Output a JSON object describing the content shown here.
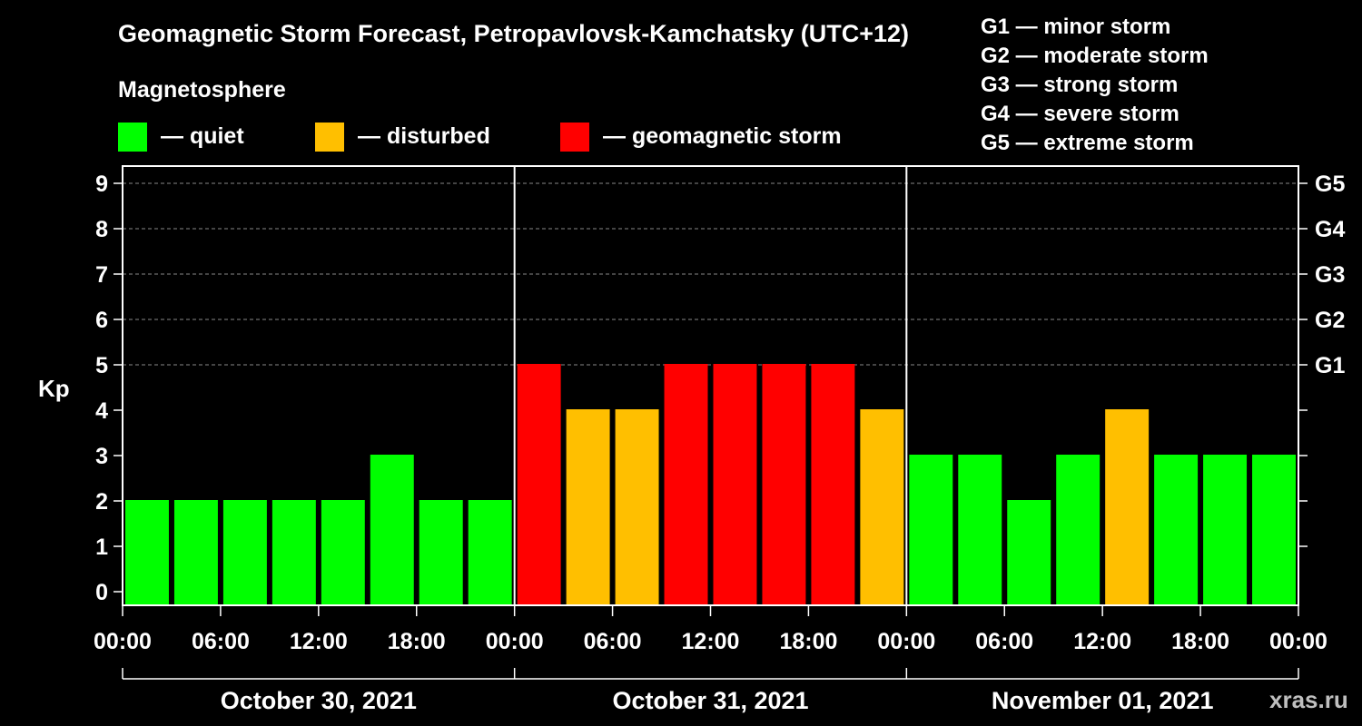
{
  "title": "Geomagnetic Storm Forecast, Petropavlovsk-Kamchatsky (UTC+12)",
  "legend": {
    "title": "Magnetosphere",
    "items": [
      {
        "label": "— quiet",
        "color": "#00ff00"
      },
      {
        "label": "— disturbed",
        "color": "#ffbf00"
      },
      {
        "label": "— geomagnetic storm",
        "color": "#ff0000"
      }
    ]
  },
  "storm_levels": [
    "G1 — minor storm",
    "G2 — moderate storm",
    "G3 — strong storm",
    "G4 — severe storm",
    "G5 — extreme storm"
  ],
  "watermark": "xras.ru",
  "chart_data": {
    "type": "bar",
    "ylabel": "Kp",
    "ylim": [
      0,
      9
    ],
    "yticks": [
      "0",
      "1",
      "2",
      "3",
      "4",
      "5",
      "6",
      "7",
      "8",
      "9"
    ],
    "right_axis_labels": [
      {
        "kp": 5,
        "label": "G1"
      },
      {
        "kp": 6,
        "label": "G2"
      },
      {
        "kp": 7,
        "label": "G3"
      },
      {
        "kp": 8,
        "label": "G4"
      },
      {
        "kp": 9,
        "label": "G5"
      }
    ],
    "xtick_labels": [
      "00:00",
      "06:00",
      "12:00",
      "18:00",
      "00:00",
      "06:00",
      "12:00",
      "18:00",
      "00:00",
      "06:00",
      "12:00",
      "18:00",
      "00:00"
    ],
    "days": [
      "October 30, 2021",
      "October 31, 2021",
      "November 01, 2021"
    ],
    "grid": true,
    "values": [
      2,
      2,
      2,
      2,
      2,
      3,
      2,
      2,
      5,
      4,
      4,
      5,
      5,
      5,
      5,
      4,
      3,
      3,
      2,
      3,
      4,
      3,
      3,
      3
    ],
    "colors": {
      "quiet": "#00ff00",
      "disturbed": "#ffbf00",
      "storm": "#ff0000"
    }
  }
}
